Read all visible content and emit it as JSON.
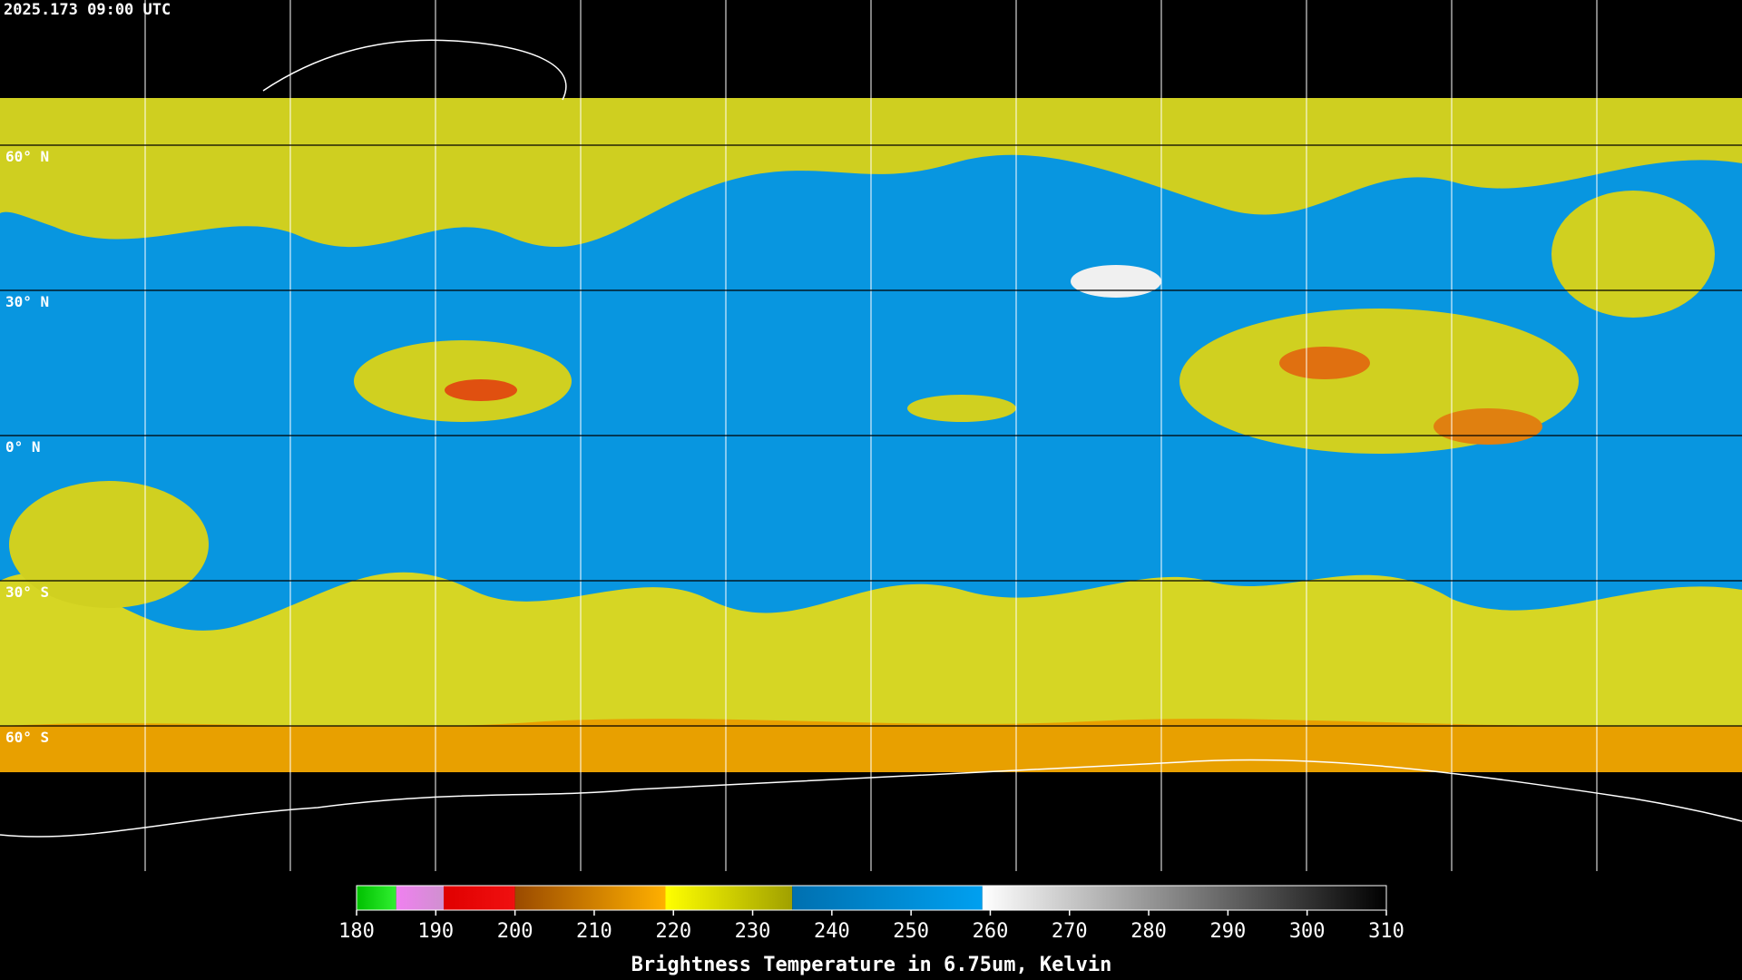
{
  "timestamp": "2025.173 09:00 UTC",
  "lat_lim": [
    90,
    -90
  ],
  "lat_grid": [
    {
      "value": 60,
      "label": "60° N"
    },
    {
      "value": 30,
      "label": "30° N"
    },
    {
      "value": 0,
      "label": "0° N"
    },
    {
      "value": -30,
      "label": "30° S"
    },
    {
      "value": -60,
      "label": "60° S"
    }
  ],
  "colorbar": {
    "title": "Brightness Temperature in 6.75um, Kelvin",
    "lim": [
      180,
      310
    ],
    "ticks": [
      180,
      190,
      200,
      210,
      220,
      230,
      240,
      250,
      260,
      270,
      280,
      290,
      300,
      310
    ],
    "stops": [
      {
        "value": 180,
        "color": "#00c000"
      },
      {
        "value": 185,
        "color": "#30f030"
      },
      {
        "value": 185,
        "color": "#f080f0"
      },
      {
        "value": 191,
        "color": "#d090d0"
      },
      {
        "value": 191,
        "color": "#e00000"
      },
      {
        "value": 200,
        "color": "#f01010"
      },
      {
        "value": 200,
        "color": "#9a4a00"
      },
      {
        "value": 219,
        "color": "#ffb000"
      },
      {
        "value": 219,
        "color": "#ffff00"
      },
      {
        "value": 235,
        "color": "#a0a000"
      },
      {
        "value": 235,
        "color": "#0070b0"
      },
      {
        "value": 259,
        "color": "#00a0f0"
      },
      {
        "value": 259,
        "color": "#ffffff"
      },
      {
        "value": 310,
        "color": "#000000"
      }
    ]
  }
}
